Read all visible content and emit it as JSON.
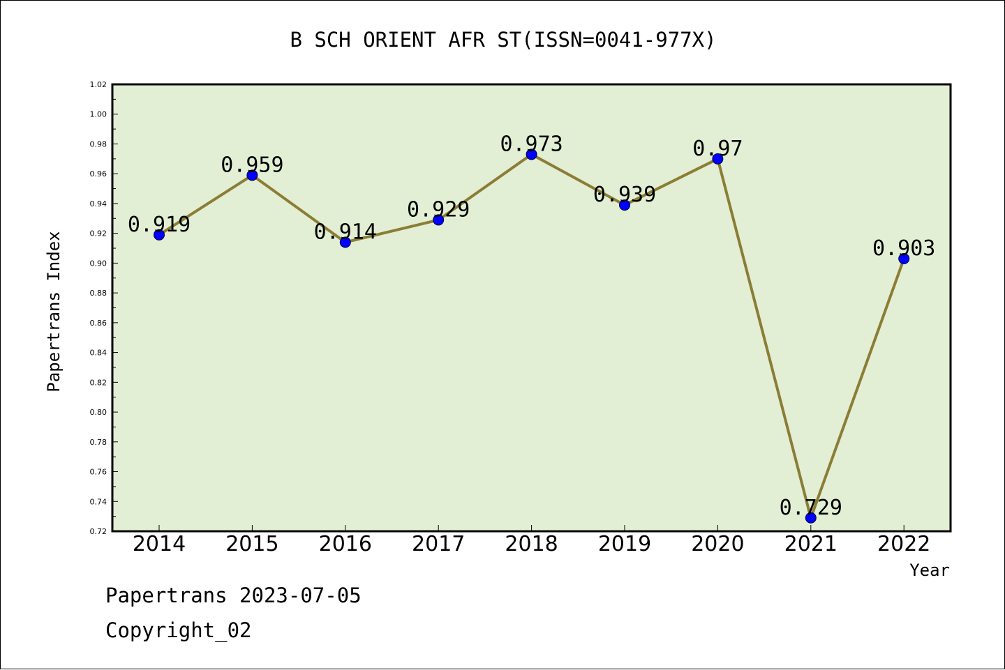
{
  "chart_data": {
    "type": "line",
    "title": "B SCH ORIENT AFR ST(ISSN=0041-977X)",
    "xlabel": "Year",
    "ylabel": "Papertrans Index",
    "categories": [
      "2014",
      "2015",
      "2016",
      "2017",
      "2018",
      "2019",
      "2020",
      "2021",
      "2022"
    ],
    "series": [
      {
        "values": [
          0.919,
          0.959,
          0.914,
          0.929,
          0.973,
          0.939,
          0.97,
          0.729,
          0.903
        ],
        "data_labels": [
          "0.919",
          "0.959",
          "0.914",
          "0.929",
          "0.973",
          "0.939",
          "0.97",
          "0.729",
          "0.903"
        ]
      }
    ],
    "ylim": [
      0.72,
      1.02
    ],
    "yticks": [
      "0.72",
      "0.74",
      "0.76",
      "0.78",
      "0.80",
      "0.82",
      "0.84",
      "0.86",
      "0.88",
      "0.90",
      "0.92",
      "0.94",
      "0.96",
      "0.98",
      "1.00",
      "1.02"
    ],
    "grid": false,
    "legend": "none"
  },
  "colors": {
    "plot_background": "#e2efd4",
    "line": "#8b7d35",
    "marker": "#0000ff",
    "axis": "#000000"
  },
  "footer": {
    "date_line": "Papertrans 2023-07-05",
    "copyright_line": "Copyright_02"
  }
}
